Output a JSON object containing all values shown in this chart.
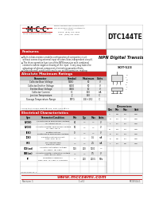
{
  "title": "DTC144TE",
  "subtitle": "NPN Digital Transistor",
  "package": "SOT-523",
  "company_logo": "·M·C·C·",
  "company_sub": "Micro Commercial Components",
  "address1": "Micro Commercial Components",
  "address2": "20736 Marilla Street Chatsworth",
  "address3": "CA 91311",
  "phone": "Phone: (818) 701-4933",
  "fax": "Fax:   (818) 701-4939",
  "website": "www.mccsemi.com",
  "rev": "Revision: 1",
  "page": "1 of 2",
  "doc": "MCC8114-1",
  "features_title": "Features",
  "feat1": "Built-in bias resistors enables configuration of composite circuit",
  "feat1b": "without connecting external input resistors (bias-independent circuit).",
  "feat2": "The three-operation function of the NPN transistor with combined",
  "feat2b": "resistor to where negative biasing of the input. It very easy takes the",
  "feat2c": "advantage of almost component-eliminating parasite effects.",
  "feat3": "Ordering small conditional results can set for operation, making",
  "feat3b": "device design easy.",
  "abs_max_title": "Absolute Maximum Ratings",
  "abs_cols": [
    0,
    68,
    100,
    122,
    138
  ],
  "abs_headers": [
    "Parameter",
    "Symbol",
    "Maximum",
    "Units"
  ],
  "abs_rows": [
    [
      "Collector-Base Voltage",
      "VCBO",
      "80",
      "V"
    ],
    [
      "Collector-Emitter Voltage",
      "VCEO",
      "50",
      "V"
    ],
    [
      "Emitter-Base Voltage",
      "VEBO",
      "10",
      "V"
    ],
    [
      "Collector Current",
      "IC",
      "100",
      "mA"
    ],
    [
      "Junction Temperature",
      "TJ",
      "150",
      "°C"
    ],
    [
      "Storage Temperature Range",
      "TSTG",
      "-55/+150",
      "°C"
    ]
  ],
  "abs_note": "* Pulse test: Pulsed Width ≤ 1ms, Duty Cycle ≤ 1%\n  Construction Rating 0.15 in encircle, Rating 1",
  "elec_title": "Electrical Characteristics",
  "elec_cols": [
    0,
    28,
    80,
    98,
    112,
    126,
    138
  ],
  "elec_headers": [
    "Sym",
    "Parameter/Condition",
    "Min",
    "Typ",
    "Max",
    "Units"
  ],
  "elec_rows": [
    [
      "BVCBO",
      "Collector-Base Breakdown Voltage\nIC=100μA, IE=0",
      "80",
      "—",
      "—",
      "V"
    ],
    [
      "BVCEO",
      "Collector-Emitter Breakdown Voltage\nIC=1mA, IB=0",
      "50",
      "—",
      "—",
      "V"
    ],
    [
      "IEBO",
      "Emitter Cut-off\nEmitter-Base Breakdown Voltage",
      "0",
      "—",
      "—",
      "V"
    ],
    [
      "ICBO",
      "Collector Cut-off Current\nVCB=10V, IE=0",
      "—",
      "—",
      "0.1",
      "mA"
    ],
    [
      "hFE",
      "DC Current Gain\nhFE at IC=2mA",
      "—",
      "—",
      "2.5",
      "mA"
    ],
    [
      "VCE(sat)",
      "Collector Saturation Voltage\nIC=10mA, IB=1mA",
      "100",
      "200",
      "1000",
      "—"
    ],
    [
      "VBE(on)",
      "Collector-Emitter Saturation Voltage\nVCE=5V, IC=2mA",
      "—",
      "—",
      "0.5",
      "V"
    ],
    [
      "fT",
      "Transition Frequency\nVCE=10V, IC=1mA, f=100MHz",
      "—",
      "200",
      "200.5",
      "MHz"
    ]
  ],
  "elec_note": "*Measuring 25°C",
  "right_table_title": "Dimensions",
  "right_col_headers": [
    "Dim",
    "Min",
    "Max",
    "Units"
  ],
  "right_rows": [
    [
      "A",
      "0.8",
      "1.0",
      "mm"
    ],
    [
      "b",
      "0.2",
      "0.4",
      "mm"
    ],
    [
      "c",
      "0.1",
      "0.2",
      "mm"
    ],
    [
      "D",
      "1.8",
      "2.0",
      "mm"
    ],
    [
      "E",
      "1.1",
      "1.3",
      "mm"
    ],
    [
      "e",
      "0.6",
      "0.7",
      "mm"
    ],
    [
      "L",
      "0.2",
      "0.5",
      "mm"
    ]
  ],
  "red": "#cc2222",
  "dark_red": "#aa1111",
  "gray_header": "#b8b8b8",
  "gray_row_alt": "#e8e8e8",
  "border": "#888888",
  "text": "#111111",
  "light_gray": "#f2f2f2",
  "white": "#ffffff",
  "dark_gray": "#444444"
}
